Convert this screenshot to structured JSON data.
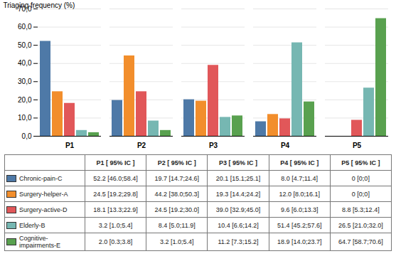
{
  "chart_data": {
    "type": "bar",
    "categories": [
      "P1",
      "P2",
      "P3",
      "P4",
      "P5"
    ],
    "series": [
      {
        "name": "Chronic-pain-C",
        "values": [
          52.2,
          19.7,
          20.1,
          8.0,
          0.0
        ],
        "table_cells": [
          "52.2 [46.0;58.4]",
          "19.7 [14.7;24.6]",
          "20.1 [15.1;25.1]",
          "8.0 [4.7;11.4]",
          "0 [0;0]"
        ]
      },
      {
        "name": "Surgery-helper-A",
        "values": [
          24.5,
          44.2,
          19.3,
          12.0,
          0.0
        ],
        "table_cells": [
          "24.5 [19.2;29.8]",
          "44.2 [38.0;50.3]",
          "19.3 [14.4;24.2]",
          "12.0 [8.0;16.1]",
          "0 [0;0]"
        ]
      },
      {
        "name": "Surgery-active-D",
        "values": [
          18.1,
          24.5,
          39.0,
          9.6,
          8.8
        ],
        "table_cells": [
          "18.1 [13.3;22.9]",
          "24.5 [19.2;30.0]",
          "39.0 [32.9;45.0]",
          "9.6 [6.0;13.3]",
          "8.8 [5.3;12.4]"
        ]
      },
      {
        "name": "Elderly-B",
        "values": [
          3.2,
          8.4,
          10.4,
          51.4,
          26.5
        ],
        "table_cells": [
          "3.2 [1.0;5.4]",
          "8.4 [5.0;11.9]",
          "10.4 [6.6;14.2]",
          "51.4 [45.2;57.6]",
          "26.5 [21.0;32.0]"
        ]
      },
      {
        "name": "Cognitive-\nimpairments-E",
        "values": [
          2.0,
          3.2,
          11.2,
          18.9,
          64.7
        ],
        "table_cells": [
          "2.0 [0.3;3.8]",
          "3.2 [1.0;5.4]",
          "11.2 [7.3;15.2]",
          "18.9 [14.0;23.7]",
          "64.7 [58.7;70.6]"
        ]
      }
    ],
    "ylabel": "Triaging frequency (%)",
    "ylim": [
      0,
      70
    ],
    "yticks": [
      {
        "value": 0,
        "label": "0,0"
      },
      {
        "value": 10,
        "label": "10,0"
      },
      {
        "value": 20,
        "label": "20,0"
      },
      {
        "value": 30,
        "label": "30,0"
      },
      {
        "value": 40,
        "label": "40,0"
      },
      {
        "value": 50,
        "label": "50,0"
      },
      {
        "value": 60,
        "label": "60,0"
      },
      {
        "value": 70,
        "label": "70,0"
      }
    ],
    "grid": true,
    "table_headers": [
      "P1 [ 95% IC ]",
      "P2 [ 95% IC ]",
      "P3 [ 95% IC ]",
      "P4 [ 95% IC ]",
      "P5 [ 95% IC ]"
    ]
  }
}
